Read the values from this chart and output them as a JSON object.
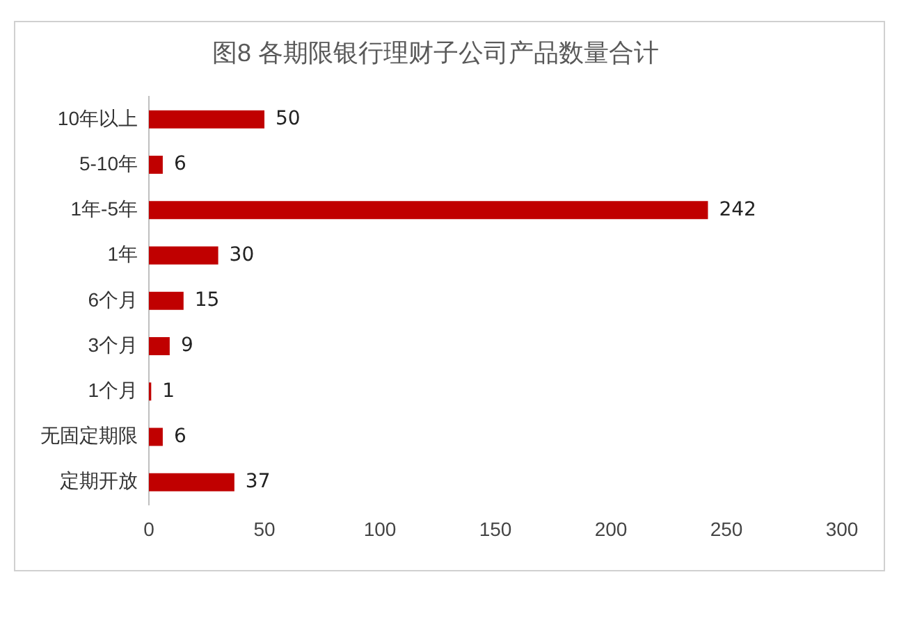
{
  "chart_data": {
    "type": "bar",
    "orientation": "horizontal",
    "title": "图8 各期限银行理财子公司产品数量合计",
    "categories": [
      "10年以上",
      "5-10年",
      "1年-5年",
      "1年",
      "6个月",
      "3个月",
      "1个月",
      "无固定期限",
      "定期开放"
    ],
    "values": [
      50,
      6,
      242,
      30,
      15,
      9,
      1,
      6,
      37
    ],
    "color": "#c00000",
    "xlim": [
      0,
      300
    ],
    "xticks": [
      0,
      50,
      100,
      150,
      200,
      250,
      300
    ],
    "grid": false,
    "legend": false,
    "data_labels": true
  }
}
